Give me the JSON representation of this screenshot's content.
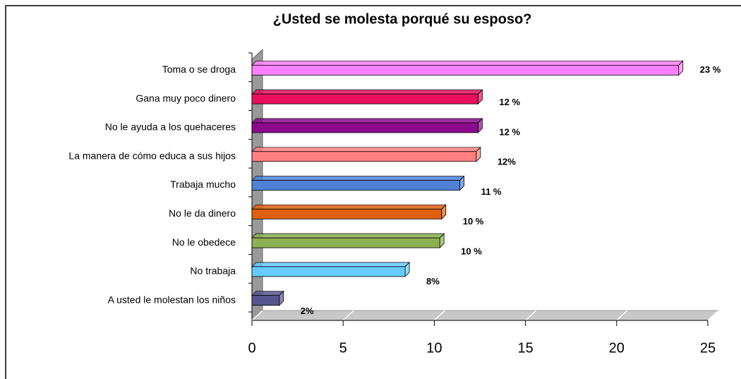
{
  "chart_data": {
    "type": "bar",
    "orientation": "horizontal",
    "title": "¿Usted se molesta porqué su esposo?",
    "categories": [
      "Toma o se droga",
      "Gana muy poco dinero",
      "No le ayuda a los quehaceres",
      "La manera de cómo educa a sus hijos",
      "Trabaja mucho",
      "No le da dinero",
      "No le obedece",
      "No trabaja",
      "A usted le molestan los niños"
    ],
    "values": [
      23.4,
      12.4,
      12.4,
      12.3,
      11.4,
      10.4,
      10.3,
      8.4,
      1.5
    ],
    "value_labels": [
      "23 %",
      "12 %",
      "12 %",
      "12%",
      "11 %",
      "10 %",
      "10 %",
      "8%",
      "2%"
    ],
    "colors": [
      "#ff80ff",
      "#e8105a",
      "#8b0a8b",
      "#ff8080",
      "#4f81d6",
      "#e06010",
      "#8db050",
      "#66ccff",
      "#555590"
    ],
    "xlim": [
      0,
      25
    ],
    "xticks": [
      0,
      5,
      10,
      15,
      20,
      25
    ]
  }
}
